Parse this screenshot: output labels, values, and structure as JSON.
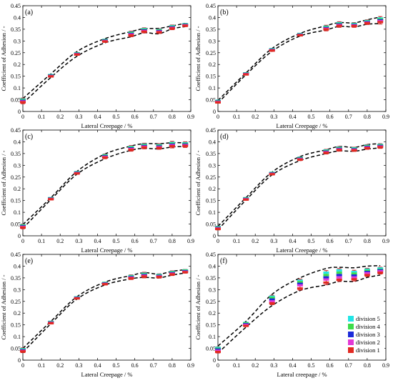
{
  "figure": {
    "legend": {
      "entries": [
        {
          "label": "division 5",
          "color": "#22e5e5"
        },
        {
          "label": "division 4",
          "color": "#3ddc4a"
        },
        {
          "label": "division 3",
          "color": "#1c2bd9"
        },
        {
          "label": "division 2",
          "color": "#e33ad6"
        },
        {
          "label": "division 1",
          "color": "#e22a22"
        }
      ]
    }
  },
  "chart_data": [
    {
      "type": "scatter",
      "panel_label": "(a)",
      "xlabel": "Lateral Creepage / %",
      "ylabel": "Coefficient of Adhesion / -",
      "xlim": [
        0,
        0.9
      ],
      "ylim": [
        0,
        0.45
      ],
      "xticks": [
        "0",
        "0.1",
        "0.2",
        "0.3",
        "0.4",
        "0.5",
        "0.6",
        "0.7",
        "0.8",
        "0.9"
      ],
      "yticks": [
        "0",
        "0.05",
        "0.1",
        "0.15",
        "0.2",
        "0.25",
        "0.3",
        "0.35",
        "0.4",
        "0.45"
      ],
      "x": [
        0.0,
        0.15,
        0.29,
        0.44,
        0.58,
        0.65,
        0.73,
        0.8,
        0.87
      ],
      "y": [
        0.045,
        0.152,
        0.245,
        0.301,
        0.33,
        0.345,
        0.342,
        0.358,
        0.368
      ],
      "err": [
        0.012,
        0.006,
        0.006,
        0.007,
        0.012,
        0.011,
        0.01,
        0.01,
        0.007
      ],
      "upper_envelope": [
        0.055,
        0.16,
        0.255,
        0.31,
        0.34,
        0.352,
        0.354,
        0.364,
        0.375
      ],
      "lower_envelope": [
        0.035,
        0.145,
        0.235,
        0.292,
        0.318,
        0.335,
        0.331,
        0.352,
        0.361
      ]
    },
    {
      "type": "scatter",
      "panel_label": "(b)",
      "xlabel": "Lateral Creepage / %",
      "ylabel": "Coefficient of Adhesion / -",
      "xlim": [
        0,
        0.9
      ],
      "ylim": [
        0,
        0.45
      ],
      "xticks": [
        "0",
        "0.1",
        "0.2",
        "0.3",
        "0.4",
        "0.5",
        "0.6",
        "0.7",
        "0.8",
        "0.9"
      ],
      "yticks": [
        "0",
        "0.05",
        "0.1",
        "0.15",
        "0.2",
        "0.25",
        "0.3",
        "0.35",
        "0.4",
        "0.45"
      ],
      "x": [
        0.0,
        0.15,
        0.29,
        0.44,
        0.58,
        0.65,
        0.73,
        0.8,
        0.87
      ],
      "y": [
        0.042,
        0.16,
        0.262,
        0.327,
        0.355,
        0.37,
        0.368,
        0.38,
        0.388
      ],
      "err": [
        0.007,
        0.005,
        0.006,
        0.006,
        0.012,
        0.012,
        0.01,
        0.01,
        0.016
      ],
      "upper_envelope": [
        0.047,
        0.164,
        0.268,
        0.332,
        0.365,
        0.378,
        0.377,
        0.39,
        0.402
      ],
      "lower_envelope": [
        0.036,
        0.156,
        0.256,
        0.321,
        0.347,
        0.362,
        0.36,
        0.371,
        0.374
      ]
    },
    {
      "type": "scatter",
      "panel_label": "(c)",
      "xlabel": "Lateral Creepage / %",
      "ylabel": "Coefficient of Adhesion / -",
      "xlim": [
        0,
        0.9
      ],
      "ylim": [
        0,
        0.45
      ],
      "xticks": [
        "0",
        "0.1",
        "0.2",
        "0.3",
        "0.4",
        "0.5",
        "0.6",
        "0.7",
        "0.8",
        "0.9"
      ],
      "yticks": [
        "0",
        "0.05",
        "0.1",
        "0.15",
        "0.2",
        "0.25",
        "0.3",
        "0.35",
        "0.4",
        "0.45"
      ],
      "x": [
        0.0,
        0.15,
        0.29,
        0.44,
        0.58,
        0.65,
        0.73,
        0.8,
        0.87
      ],
      "y": [
        0.04,
        0.158,
        0.268,
        0.338,
        0.372,
        0.382,
        0.38,
        0.388,
        0.388
      ],
      "err": [
        0.01,
        0.005,
        0.006,
        0.01,
        0.012,
        0.012,
        0.012,
        0.014,
        0.012
      ],
      "upper_envelope": [
        0.048,
        0.162,
        0.274,
        0.348,
        0.382,
        0.392,
        0.392,
        0.396,
        0.396
      ],
      "lower_envelope": [
        0.032,
        0.154,
        0.262,
        0.328,
        0.364,
        0.372,
        0.37,
        0.378,
        0.38
      ]
    },
    {
      "type": "scatter",
      "panel_label": "(d)",
      "xlabel": "Lateral Creepage / %",
      "ylabel": "Coefficient of Adhesion / -",
      "xlim": [
        0,
        0.9
      ],
      "ylim": [
        0,
        0.45
      ],
      "xticks": [
        "0",
        "0.1",
        "0.2",
        "0.3",
        "0.4",
        "0.5",
        "0.6",
        "0.7",
        "0.8",
        "0.9"
      ],
      "yticks": [
        "0",
        "0.05",
        "0.1",
        "0.15",
        "0.2",
        "0.25",
        "0.3",
        "0.35",
        "0.4",
        "0.45"
      ],
      "x": [
        0.0,
        0.15,
        0.29,
        0.44,
        0.58,
        0.65,
        0.73,
        0.8,
        0.87
      ],
      "y": [
        0.033,
        0.157,
        0.265,
        0.328,
        0.358,
        0.37,
        0.368,
        0.378,
        0.382
      ],
      "err": [
        0.008,
        0.006,
        0.006,
        0.008,
        0.01,
        0.01,
        0.009,
        0.01,
        0.01
      ],
      "upper_envelope": [
        0.04,
        0.162,
        0.271,
        0.337,
        0.366,
        0.38,
        0.376,
        0.388,
        0.392
      ],
      "lower_envelope": [
        0.026,
        0.152,
        0.259,
        0.32,
        0.35,
        0.361,
        0.36,
        0.369,
        0.374
      ]
    },
    {
      "type": "scatter",
      "panel_label": "(e)",
      "xlabel": "Lateral Creepage / %",
      "ylabel": "Coefficient of Adhesion / -",
      "xlim": [
        0,
        0.9
      ],
      "ylim": [
        0,
        0.45
      ],
      "xticks": [
        "0",
        "0.1",
        "0.2",
        "0.3",
        "0.4",
        "0.5",
        "0.6",
        "0.7",
        "0.8",
        "0.9"
      ],
      "yticks": [
        "0",
        "0.05",
        "0.1",
        "0.15",
        "0.2",
        "0.25",
        "0.3",
        "0.35",
        "0.4",
        "0.45"
      ],
      "x": [
        0.0,
        0.15,
        0.29,
        0.44,
        0.58,
        0.65,
        0.73,
        0.8,
        0.87
      ],
      "y": [
        0.042,
        0.16,
        0.265,
        0.326,
        0.353,
        0.362,
        0.358,
        0.37,
        0.378
      ],
      "err": [
        0.01,
        0.006,
        0.005,
        0.006,
        0.01,
        0.012,
        0.009,
        0.01,
        0.008
      ],
      "upper_envelope": [
        0.05,
        0.165,
        0.27,
        0.332,
        0.36,
        0.372,
        0.366,
        0.378,
        0.385
      ],
      "lower_envelope": [
        0.034,
        0.155,
        0.26,
        0.32,
        0.346,
        0.352,
        0.35,
        0.362,
        0.371
      ]
    },
    {
      "type": "scatter",
      "panel_label": "(f)",
      "xlabel": "Lateral creepage / %",
      "ylabel": "Coefficient of Adhesion / -",
      "xlim": [
        0,
        0.9
      ],
      "ylim": [
        0,
        0.45
      ],
      "xticks": [
        "0",
        "0.1",
        "0.2",
        "0.3",
        "0.4",
        "0.5",
        "0.6",
        "0.7",
        "0.8",
        "0.9"
      ],
      "yticks": [
        "0",
        "0.05",
        "0.1",
        "0.15",
        "0.2",
        "0.25",
        "0.3",
        "0.35",
        "0.4",
        "0.45"
      ],
      "x": [
        0.0,
        0.15,
        0.29,
        0.44,
        0.58,
        0.65,
        0.73,
        0.8,
        0.87
      ],
      "series": [
        {
          "name": "division 5",
          "color": "#22e5e5",
          "y": [
            0.052,
            0.158,
            0.27,
            0.338,
            0.372,
            0.382,
            0.375,
            0.385,
            0.39
          ]
        },
        {
          "name": "division 4",
          "color": "#3ddc4a",
          "y": [
            0.048,
            0.156,
            0.265,
            0.332,
            0.362,
            0.372,
            0.368,
            0.38,
            0.385
          ]
        },
        {
          "name": "division 3",
          "color": "#1c2bd9",
          "y": [
            0.045,
            0.153,
            0.258,
            0.325,
            0.352,
            0.362,
            0.36,
            0.375,
            0.382
          ]
        },
        {
          "name": "division 2",
          "color": "#e33ad6",
          "y": [
            0.04,
            0.15,
            0.25,
            0.318,
            0.343,
            0.352,
            0.352,
            0.37,
            0.378
          ]
        },
        {
          "name": "division 1",
          "color": "#e22a22",
          "y": [
            0.035,
            0.146,
            0.242,
            0.305,
            0.33,
            0.342,
            0.344,
            0.362,
            0.372
          ]
        }
      ],
      "err": [
        0.009,
        0.007,
        0.012,
        0.014,
        0.018,
        0.015,
        0.015,
        0.012,
        0.011
      ],
      "upper_envelope": [
        0.06,
        0.165,
        0.28,
        0.35,
        0.39,
        0.395,
        0.393,
        0.4,
        0.402
      ],
      "lower_envelope": [
        0.03,
        0.14,
        0.232,
        0.296,
        0.32,
        0.335,
        0.335,
        0.352,
        0.362
      ]
    }
  ]
}
